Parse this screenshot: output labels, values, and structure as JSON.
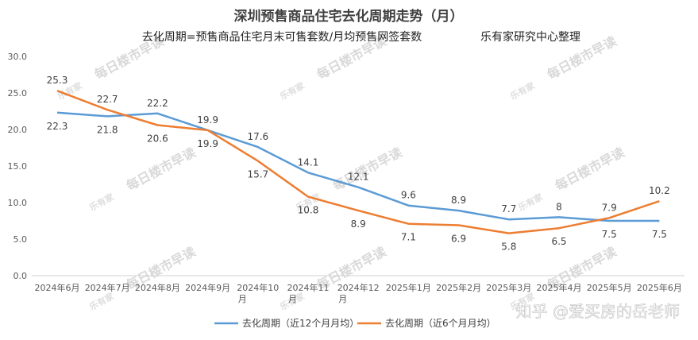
{
  "chart_data": {
    "type": "line",
    "title": "深圳预售商品住宅去化周期走势（月）",
    "subtitle": "去化周期=预售商品住宅月末可售套数/月均预售网签套数",
    "source_note": "乐有家研究中心整理",
    "categories": [
      [
        "2024年6月"
      ],
      [
        "2024年7月"
      ],
      [
        "2024年8月"
      ],
      [
        "2024年9月"
      ],
      [
        "2024年10",
        "月"
      ],
      [
        "2024年11",
        "月"
      ],
      [
        "2024年12",
        "月"
      ],
      [
        "2025年1月"
      ],
      [
        "2025年2月"
      ],
      [
        "2025年3月"
      ],
      [
        "2025年4月"
      ],
      [
        "2025年5月"
      ],
      [
        "2025年6月"
      ]
    ],
    "series": [
      {
        "name": "去化周期（近12个月月均）",
        "color": "#5b9bd5",
        "values": [
          22.3,
          21.8,
          22.2,
          19.9,
          17.6,
          14.1,
          12.1,
          9.6,
          8.9,
          7.7,
          8,
          7.5,
          7.5
        ],
        "labels": [
          "22.3",
          "21.8",
          "22.2",
          "19.9",
          "17.6",
          "14.1",
          "12.1",
          "9.6",
          "8.9",
          "7.7",
          "8",
          "7.5",
          "7.5"
        ]
      },
      {
        "name": "去化周期（近6个月月均）",
        "color": "#ed7d31",
        "values": [
          25.3,
          22.7,
          20.6,
          19.9,
          15.7,
          10.8,
          8.9,
          7.1,
          6.9,
          5.8,
          6.5,
          7.9,
          10.2
        ],
        "labels": [
          "25.3",
          "22.7",
          "20.6",
          "19.9",
          "15.7",
          "10.8",
          "8.9",
          "7.1",
          "6.9",
          "5.8",
          "6.5",
          "7.9",
          "10.2"
        ]
      }
    ],
    "yticks": [
      "0.0",
      "5.0",
      "10.0",
      "15.0",
      "20.0",
      "25.0",
      "30.0"
    ],
    "ylim": [
      0,
      30
    ],
    "grid": false,
    "legend": "bottom"
  },
  "watermark": {
    "logo": "乐有家",
    "text": "每日楼市早读"
  },
  "signature": "知乎 @爱买房的岳老师"
}
